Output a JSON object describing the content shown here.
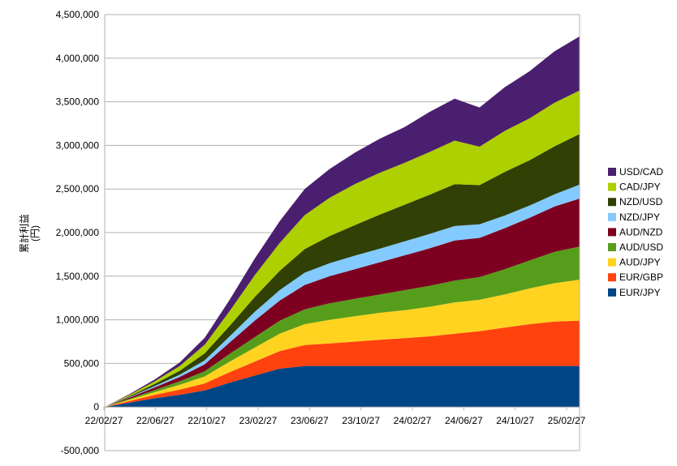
{
  "chart_data": {
    "type": "area",
    "stacked": true,
    "title": "",
    "ylabel": "累計利益\n(円)",
    "xlabel": "",
    "ylim": [
      -500000,
      4500000
    ],
    "y_ticks": [
      -500000,
      0,
      500000,
      1000000,
      1500000,
      2000000,
      2500000,
      3000000,
      3500000,
      4000000,
      4500000
    ],
    "y_tick_labels": [
      "-500,000",
      "0",
      "500,000",
      "1,000,000",
      "1,500,000",
      "2,000,000",
      "2,500,000",
      "3,000,000",
      "3,500,000",
      "4,000,000",
      "4,500,000"
    ],
    "x_tick_labels": [
      "22/02/27",
      "22/06/27",
      "22/10/27",
      "23/02/27",
      "23/06/27",
      "23/10/27",
      "24/02/27",
      "24/06/27",
      "24/10/27",
      "25/02/27"
    ],
    "grid": "horizontal",
    "legend_position": "right",
    "x": [
      "22/02/27",
      "22/04/27",
      "22/06/27",
      "22/08/27",
      "22/10/27",
      "22/12/27",
      "23/02/27",
      "23/04/27",
      "23/06/27",
      "23/08/27",
      "23/10/27",
      "23/12/27",
      "24/02/27",
      "24/04/27",
      "24/06/27",
      "24/08/27",
      "24/10/27",
      "24/12/27",
      "25/02/27",
      "25/03/10"
    ],
    "series": [
      {
        "name": "EUR/JPY",
        "color": "#004586",
        "values": [
          0,
          50000,
          100000,
          140000,
          190000,
          280000,
          360000,
          440000,
          470000,
          470000,
          470000,
          470000,
          470000,
          470000,
          470000,
          470000,
          470000,
          470000,
          470000,
          470000
        ]
      },
      {
        "name": "EUR/GBP",
        "color": "#ff420e",
        "values": [
          0,
          20000,
          40000,
          60000,
          80000,
          120000,
          160000,
          200000,
          240000,
          260000,
          280000,
          300000,
          320000,
          340000,
          370000,
          400000,
          440000,
          480000,
          510000,
          520000
        ]
      },
      {
        "name": "AUD/JPY",
        "color": "#ffd320",
        "values": [
          0,
          15000,
          30000,
          55000,
          80000,
          120000,
          160000,
          200000,
          240000,
          270000,
          290000,
          310000,
          320000,
          340000,
          360000,
          360000,
          380000,
          410000,
          440000,
          470000
        ]
      },
      {
        "name": "AUD/USD",
        "color": "#579d1c",
        "values": [
          0,
          10000,
          25000,
          40000,
          60000,
          90000,
          120000,
          150000,
          170000,
          190000,
          200000,
          210000,
          230000,
          240000,
          250000,
          260000,
          290000,
          320000,
          360000,
          380000
        ]
      },
      {
        "name": "AUD/NZD",
        "color": "#7e0021",
        "values": [
          0,
          15000,
          30000,
          50000,
          80000,
          130000,
          190000,
          230000,
          280000,
          310000,
          340000,
          370000,
          400000,
          430000,
          460000,
          450000,
          470000,
          490000,
          520000,
          550000
        ]
      },
      {
        "name": "NZD/JPY",
        "color": "#83caff",
        "values": [
          0,
          5000,
          15000,
          25000,
          45000,
          70000,
          100000,
          120000,
          140000,
          150000,
          155000,
          155000,
          160000,
          165000,
          165000,
          155000,
          145000,
          140000,
          140000,
          160000
        ]
      },
      {
        "name": "NZD/USD",
        "color": "#314004",
        "values": [
          0,
          10000,
          25000,
          45000,
          80000,
          120000,
          170000,
          220000,
          270000,
          310000,
          350000,
          390000,
          420000,
          450000,
          480000,
          450000,
          500000,
          520000,
          550000,
          580000
        ]
      },
      {
        "name": "CAD/JPY",
        "color": "#aecf00",
        "values": [
          0,
          15000,
          30000,
          55000,
          100000,
          170000,
          250000,
          320000,
          390000,
          440000,
          470000,
          480000,
          480000,
          490000,
          500000,
          440000,
          470000,
          480000,
          500000,
          500000
        ]
      },
      {
        "name": "USD/CAD",
        "color": "#4b1f6f",
        "values": [
          0,
          10000,
          20000,
          40000,
          80000,
          130000,
          190000,
          250000,
          300000,
          330000,
          360000,
          390000,
          410000,
          460000,
          480000,
          450000,
          500000,
          540000,
          590000,
          620000
        ]
      }
    ]
  }
}
